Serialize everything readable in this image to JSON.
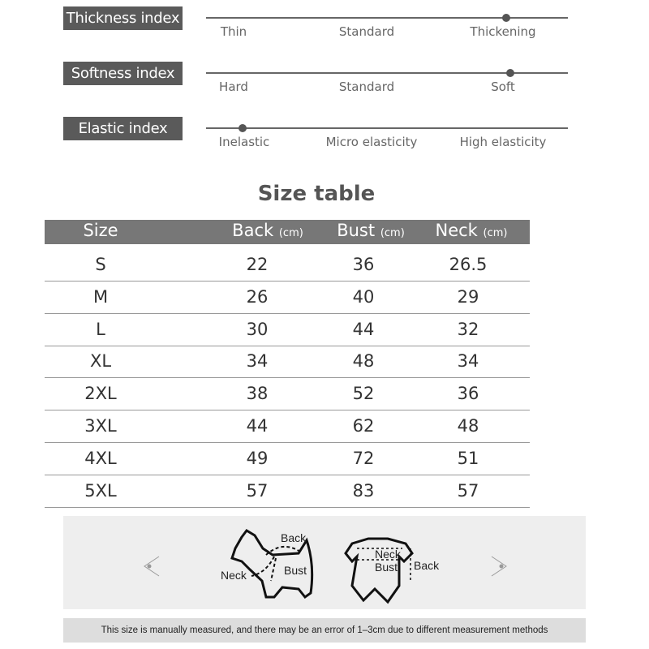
{
  "indices": [
    {
      "label": "Thickness index",
      "options": [
        "Thin",
        "Standard",
        "Thickening"
      ],
      "level": 0.83
    },
    {
      "label": "Softness index",
      "options": [
        "Hard",
        "Standard",
        "Soft"
      ],
      "level": 0.84
    },
    {
      "label": "Elastic index",
      "options": [
        "Inelastic",
        "Micro elasticity",
        "High elasticity"
      ],
      "level": 0.1
    }
  ],
  "size_table": {
    "title": "Size table",
    "headers": [
      "Size",
      "Back",
      "Bust",
      "Neck"
    ],
    "unit": "(cm)",
    "rows": [
      [
        "S",
        "22",
        "36",
        "26.5"
      ],
      [
        "M",
        "26",
        "40",
        "29"
      ],
      [
        "L",
        "30",
        "44",
        "32"
      ],
      [
        "XL",
        "34",
        "48",
        "34"
      ],
      [
        "2XL",
        "38",
        "52",
        "36"
      ],
      [
        "3XL",
        "44",
        "62",
        "48"
      ],
      [
        "4XL",
        "49",
        "72",
        "51"
      ],
      [
        "5XL",
        "57",
        "83",
        "57"
      ]
    ]
  },
  "diagram": {
    "dog_labels": [
      "Back",
      "Neck",
      "Bust"
    ],
    "garment_labels": [
      "Neck",
      "Bust",
      "Back"
    ]
  },
  "note": "This size is manually measured, and there may be an error of 1–3cm due to different measurement methods",
  "colors": {
    "label_bg": "#5a5a5a",
    "header_bg": "#777777",
    "panel_bg": "#eeeeee"
  }
}
